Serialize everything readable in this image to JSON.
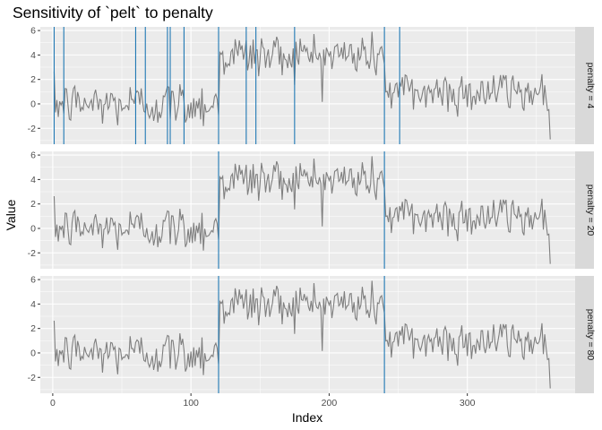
{
  "chart_data": {
    "type": "line",
    "title": "Sensitivity of `pelt` to penalty",
    "xlabel": "Index",
    "ylabel": "Value",
    "xlim": [
      -9,
      378
    ],
    "ylim": [
      -3.3,
      6.3
    ],
    "x_ticks": [
      0,
      100,
      200,
      300
    ],
    "y_ticks": [
      -2,
      0,
      2,
      4,
      6
    ],
    "grid": true,
    "colors": {
      "panel_bg": "#ebebeb",
      "grid": "#ffffff",
      "series_line": "#7f7f7f",
      "changepoint_line": "#1f78b4",
      "strip_bg": "#d9d9d9",
      "axis_text": "#4d4d4d"
    },
    "series_description": "Same simulated series in all panels: 360 points, segment means 0 (1-120), 4 (121-240), 1 (241-360), noise sd ~1",
    "segments": [
      {
        "x_start": 1,
        "x_end": 120,
        "mean": 0.0
      },
      {
        "x_start": 121,
        "x_end": 240,
        "mean": 4.0
      },
      {
        "x_start": 241,
        "x_end": 360,
        "mean": 1.0
      }
    ],
    "facets": [
      {
        "label": "penalty = 4",
        "changepoints": [
          1,
          8,
          60,
          67,
          83,
          85,
          95,
          120,
          140,
          147,
          175,
          240,
          251
        ]
      },
      {
        "label": "penalty = 20",
        "changepoints": [
          120,
          240
        ]
      },
      {
        "label": "penalty = 80",
        "changepoints": [
          120,
          240
        ]
      }
    ]
  }
}
